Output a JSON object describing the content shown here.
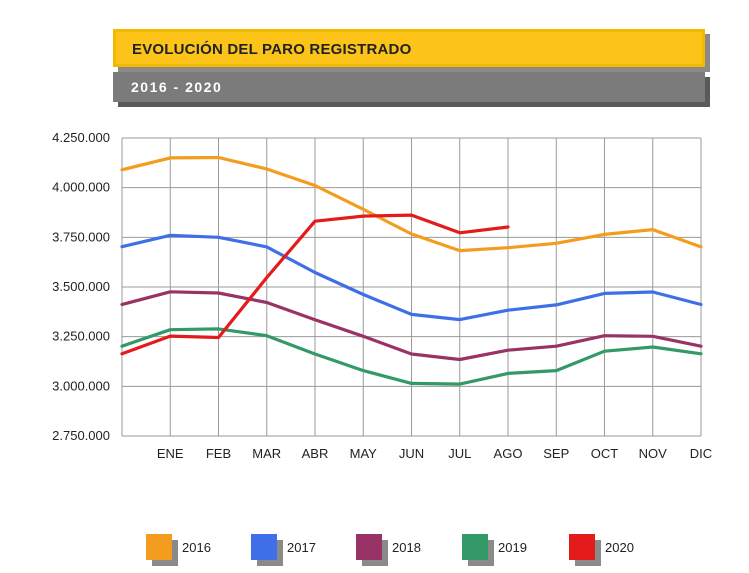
{
  "header": {
    "title": "EVOLUCIÓN DEL PARO REGISTRADO",
    "subtitle": "2016 - 2020"
  },
  "colors": {
    "title_bg": "#fcc419",
    "subtitle_bg": "#7b7b7b",
    "grid": "#9a9a9a"
  },
  "chart_data": {
    "type": "line",
    "title": "EVOLUCIÓN DEL PARO REGISTRADO",
    "subtitle": "2016 - 2020",
    "xlabel": "",
    "ylabel": "",
    "x_labels": [
      "ENE",
      "FEB",
      "MAR",
      "ABR",
      "MAY",
      "JUN",
      "JUL",
      "AGO",
      "SEP",
      "OCT",
      "NOV",
      "DIC"
    ],
    "y_ticks": [
      2750000,
      3000000,
      3250000,
      3500000,
      3750000,
      4000000,
      4250000
    ],
    "y_tick_labels": [
      "2.750.000",
      "3.000.000",
      "3.250.000",
      "3.500.000",
      "3.750.000",
      "4.000.000",
      "4.250.000"
    ],
    "ylim": [
      2750000,
      4250000
    ],
    "grid": true,
    "legend_position": "bottom",
    "series": [
      {
        "name": "2016",
        "color": "#f39c1e",
        "start": 4090000,
        "values": [
          4150000,
          4152000,
          4094000,
          4011000,
          3891000,
          3767000,
          3683000,
          3698000,
          3720000,
          3765000,
          3789000,
          3702000
        ]
      },
      {
        "name": "2017",
        "color": "#3f6fe8",
        "start": 3703000,
        "values": [
          3760000,
          3750000,
          3702000,
          3573000,
          3462000,
          3362000,
          3336000,
          3383000,
          3410000,
          3468000,
          3475000,
          3412000
        ]
      },
      {
        "name": "2018",
        "color": "#993366",
        "start": 3412000,
        "values": [
          3476000,
          3470000,
          3422000,
          3335000,
          3252000,
          3163000,
          3135000,
          3182000,
          3202000,
          3255000,
          3252000,
          3202000
        ]
      },
      {
        "name": "2019",
        "color": "#339966",
        "start": 3202000,
        "values": [
          3285000,
          3289000,
          3255000,
          3163000,
          3079000,
          3015000,
          3011000,
          3065000,
          3079000,
          3177000,
          3198000,
          3164000
        ]
      },
      {
        "name": "2020",
        "color": "#e31b1b",
        "start": 3164000,
        "values": [
          3253000,
          3246000,
          3548000,
          3831000,
          3857000,
          3862000,
          3773000,
          3802000,
          null,
          null,
          null,
          null
        ]
      }
    ]
  }
}
